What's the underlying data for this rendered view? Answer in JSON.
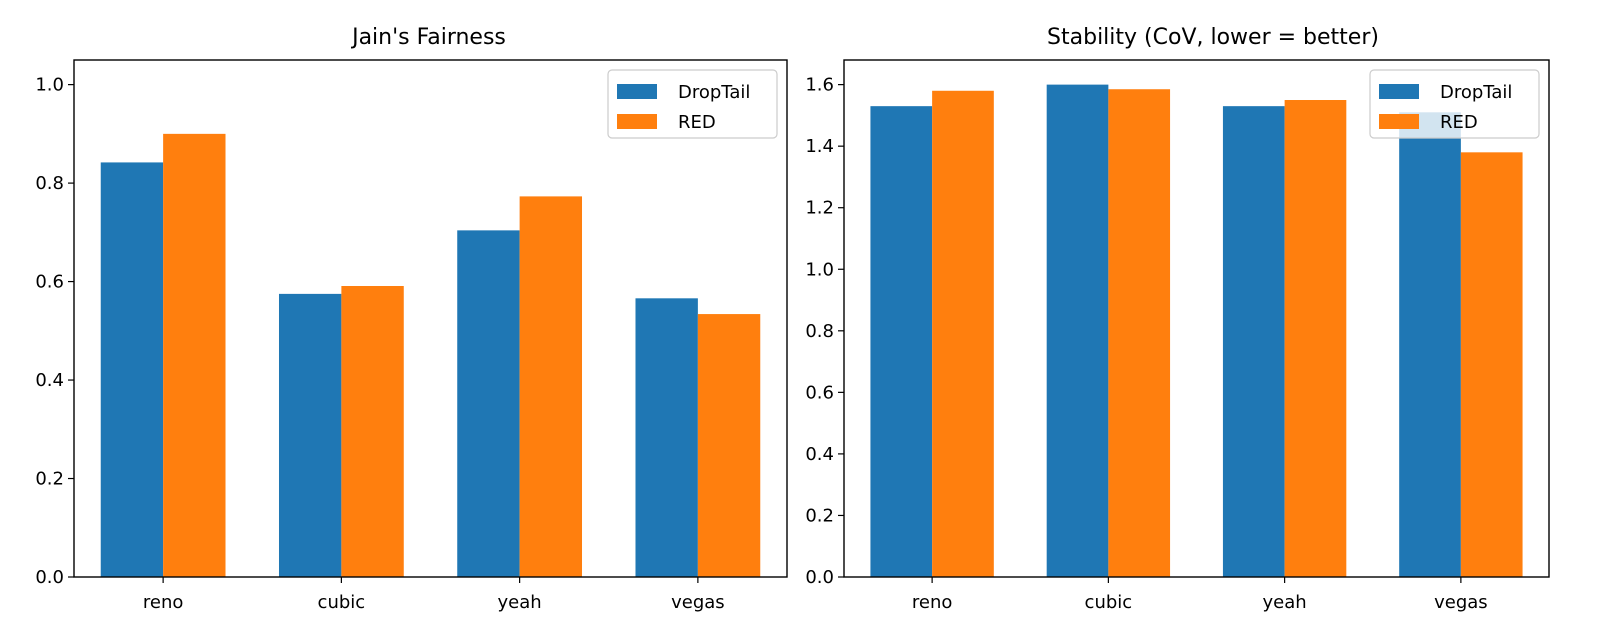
{
  "chart_data": [
    {
      "type": "bar",
      "title": "Jain's Fairness",
      "xlabel": "",
      "ylabel": "",
      "categories": [
        "reno",
        "cubic",
        "yeah",
        "vegas"
      ],
      "series": [
        {
          "name": "DropTail",
          "color": "#1f77b4",
          "values": [
            0.842,
            0.575,
            0.704,
            0.566
          ]
        },
        {
          "name": "RED",
          "color": "#ff7f0e",
          "values": [
            0.9,
            0.591,
            0.773,
            0.534
          ]
        }
      ],
      "ylim": [
        0,
        1.05
      ],
      "yticks": [
        0.0,
        0.2,
        0.4,
        0.6,
        0.8,
        1.0
      ],
      "ytick_labels": [
        "0.0",
        "0.2",
        "0.4",
        "0.6",
        "0.8",
        "1.0"
      ],
      "grid": false,
      "legend": "top-right"
    },
    {
      "type": "bar",
      "title": "Stability (CoV, lower = better)",
      "xlabel": "",
      "ylabel": "",
      "categories": [
        "reno",
        "cubic",
        "yeah",
        "vegas"
      ],
      "series": [
        {
          "name": "DropTail",
          "color": "#1f77b4",
          "values": [
            1.53,
            1.6,
            1.53,
            1.51
          ]
        },
        {
          "name": "RED",
          "color": "#ff7f0e",
          "values": [
            1.58,
            1.585,
            1.55,
            1.38
          ]
        }
      ],
      "ylim": [
        0,
        1.68
      ],
      "yticks": [
        0.0,
        0.2,
        0.4,
        0.6,
        0.8,
        1.0,
        1.2,
        1.4,
        1.6
      ],
      "ytick_labels": [
        "0.0",
        "0.2",
        "0.4",
        "0.6",
        "0.8",
        "1.0",
        "1.2",
        "1.4",
        "1.6"
      ],
      "grid": false,
      "legend": "top-right"
    }
  ]
}
